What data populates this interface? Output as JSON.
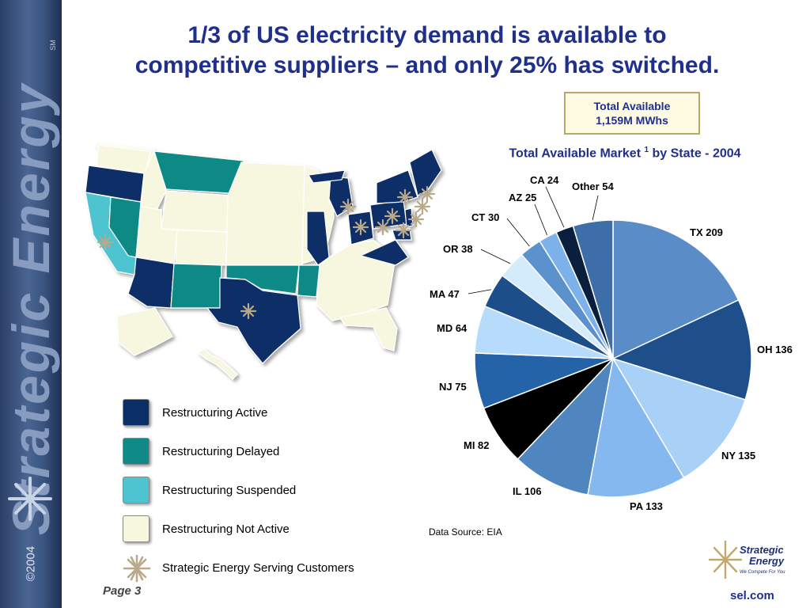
{
  "sidebar": {
    "brand": "Strategic Energy",
    "sm": "SM",
    "copyright": "©2004"
  },
  "title": {
    "line1": "1/3 of US electricity demand is available to",
    "line2": "competitive suppliers – and only 25% has switched."
  },
  "total_box": {
    "line1": "Total Available",
    "line2": "1,159M MWhs"
  },
  "chart_title": {
    "text": "Total Available Market",
    "sup": "1",
    "suffix": " by State - 2004"
  },
  "legend": [
    {
      "label": "Restructuring Active",
      "color": "#0a2f66"
    },
    {
      "label": "Restructuring Delayed",
      "color": "#0f8a86"
    },
    {
      "label": "Restructuring Suspended",
      "color": "#4ec4d0"
    },
    {
      "label": "Restructuring Not Active",
      "color": "#f7f7df"
    },
    {
      "label": "Strategic Energy Serving Customers",
      "icon": "star-icon"
    }
  ],
  "source": "Data Source: EIA",
  "page_label": "Page 3",
  "logo": {
    "line1": "Strategic",
    "line2": "Energy",
    "tagline": "We Compete For You"
  },
  "url": "sel.com",
  "chart_data": {
    "type": "pie",
    "title": "Total Available Market 1 by State - 2004",
    "start_angle_deg": 0,
    "direction": "clockwise",
    "slices": [
      {
        "label": "TX",
        "value": 209,
        "text": "TX 209",
        "color": "#5a8cc8"
      },
      {
        "label": "OH",
        "value": 136,
        "text": "OH 136",
        "color": "#1e4f8a"
      },
      {
        "label": "NY",
        "value": 135,
        "text": "NY 135",
        "color": "#a9d1f7"
      },
      {
        "label": "PA",
        "value": 133,
        "text": "PA 133",
        "color": "#84b8ee"
      },
      {
        "label": "IL",
        "value": 106,
        "text": "IL 106",
        "color": "#4f86c0"
      },
      {
        "label": "MI",
        "value": 82,
        "text": "MI 82",
        "color": "#000000"
      },
      {
        "label": "NJ",
        "value": 75,
        "text": "NJ 75",
        "color": "#2563a8"
      },
      {
        "label": "MD",
        "value": 64,
        "text": "MD 64",
        "color": "#b7dcfb"
      },
      {
        "label": "MA",
        "value": 47,
        "text": "MA 47",
        "color": "#1c4f8a"
      },
      {
        "label": "OR",
        "value": 38,
        "text": "OR 38",
        "color": "#d4ebfc"
      },
      {
        "label": "CT",
        "value": 30,
        "text": "CT 30",
        "color": "#5b91cd"
      },
      {
        "label": "AZ",
        "value": 25,
        "text": "AZ 25",
        "color": "#7db1ea"
      },
      {
        "label": "CA",
        "value": 24,
        "text": "CA 24",
        "color": "#0a1f3d"
      },
      {
        "label": "Other",
        "value": 54,
        "text": "Other  54",
        "color": "#3d6ea8"
      }
    ]
  }
}
